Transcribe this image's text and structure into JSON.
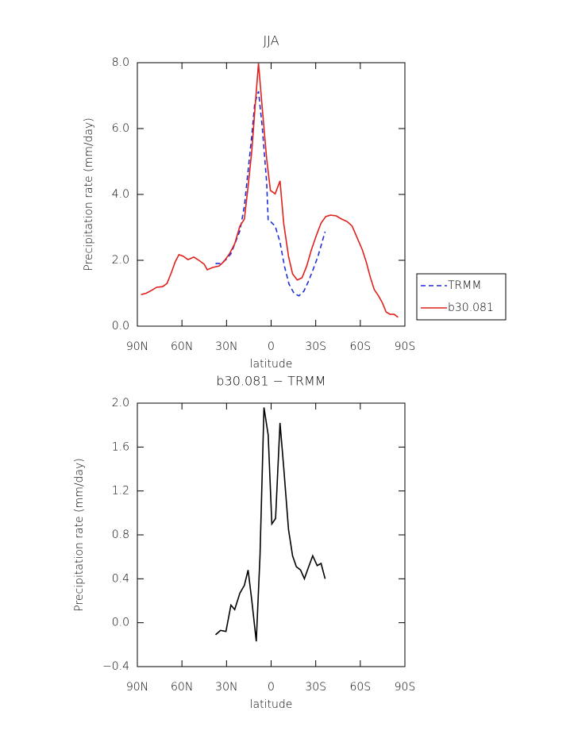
{
  "chart_data": [
    {
      "type": "line",
      "title": "JJA",
      "x_label": "latitude",
      "y_label": "Precipitation rate (mm/day)",
      "xlim": [
        90,
        -90
      ],
      "xticks": [
        {
          "value": 90,
          "label": "90N"
        },
        {
          "value": 60,
          "label": "60N"
        },
        {
          "value": 30,
          "label": "30N"
        },
        0,
        {
          "value": -30,
          "label": "30S"
        },
        {
          "value": -60,
          "label": "60S"
        },
        {
          "value": -90,
          "label": "90S"
        }
      ],
      "ylim": [
        0,
        8
      ],
      "yticks": [
        {
          "value": 0,
          "label": "0.0"
        },
        {
          "value": 2,
          "label": "2.0"
        },
        {
          "value": 4,
          "label": "4.0"
        },
        {
          "value": 6,
          "label": "6.0"
        },
        {
          "value": 8,
          "label": "8.0"
        }
      ],
      "legend": "right",
      "series": [
        {
          "name": "TRMM",
          "color": "#1f2fd6",
          "linestyle": "dashed",
          "x": [
            37.4,
            34,
            30.4,
            27,
            24,
            21,
            18,
            15.5,
            13,
            11,
            8.5,
            6,
            3,
            2,
            0,
            -2.7,
            -6,
            -9,
            -12,
            -15.5,
            -18.7,
            -22,
            -25,
            -28,
            -31.5,
            -34,
            -36.3
          ],
          "values": [
            1.9,
            1.9,
            2.02,
            2.2,
            2.55,
            2.9,
            3.64,
            4.72,
            5.8,
            6.77,
            7.13,
            6.05,
            4.36,
            3.2,
            3.16,
            3.04,
            2.55,
            1.81,
            1.28,
            0.99,
            0.92,
            1.06,
            1.35,
            1.69,
            2.12,
            2.51,
            2.87
          ]
        },
        {
          "name": "b30.081",
          "color": "#e0201b",
          "linestyle": "solid",
          "x": [
            87.5,
            84,
            80,
            77,
            73,
            70,
            67,
            64.6,
            62,
            59,
            56,
            52,
            48.6,
            45,
            43,
            39.5,
            35,
            32,
            28,
            24.5,
            21,
            18,
            15.5,
            13,
            11,
            8.5,
            6,
            3,
            0.5,
            -2.7,
            -6,
            -8.5,
            -11.7,
            -14.4,
            -17.6,
            -20.8,
            -24,
            -27,
            -30.4,
            -33.6,
            -36.8,
            -40,
            -43.8,
            -47.5,
            -51,
            -54.5,
            -58,
            -61.4,
            -64,
            -66.7,
            -69.4,
            -72,
            -74.7,
            -77.4,
            -80,
            -82.8,
            -85.4
          ],
          "values": [
            0.96,
            1.0,
            1.1,
            1.18,
            1.2,
            1.3,
            1.64,
            1.95,
            2.17,
            2.12,
            2.02,
            2.1,
            2.0,
            1.88,
            1.71,
            1.78,
            1.83,
            1.95,
            2.2,
            2.5,
            3.04,
            3.25,
            4.24,
            5.33,
            6.53,
            7.98,
            6.63,
            5.08,
            4.12,
            4.02,
            4.41,
            3.11,
            2.12,
            1.59,
            1.4,
            1.47,
            1.83,
            2.31,
            2.75,
            3.13,
            3.33,
            3.37,
            3.35,
            3.25,
            3.18,
            3.04,
            2.67,
            2.31,
            1.95,
            1.49,
            1.11,
            0.94,
            0.72,
            0.43,
            0.36,
            0.36,
            0.27
          ]
        }
      ]
    },
    {
      "type": "line",
      "title": "b30.081 − TRMM",
      "x_label": "latitude",
      "y_label": "Precipitation rate (mm/day)",
      "xlim": [
        90,
        -90
      ],
      "xticks": [
        {
          "value": 90,
          "label": "90N"
        },
        {
          "value": 60,
          "label": "60N"
        },
        {
          "value": 30,
          "label": "30N"
        },
        0,
        {
          "value": -30,
          "label": "30S"
        },
        {
          "value": -60,
          "label": "60S"
        },
        {
          "value": -90,
          "label": "90S"
        }
      ],
      "ylim": [
        -0.4,
        2.0
      ],
      "yticks": [
        {
          "value": -0.4,
          "label": "−0.4"
        },
        {
          "value": 0,
          "label": "0.0"
        },
        0.4,
        0.8,
        1.2,
        1.6,
        {
          "value": 2,
          "label": "2.0"
        }
      ],
      "color": "#000000",
      "x": [
        37.4,
        34,
        30.4,
        27,
        24.5,
        21,
        18,
        15.5,
        13,
        10,
        7.5,
        4.8,
        2,
        -0.5,
        -3,
        -6,
        -8.5,
        -11.7,
        -14.4,
        -17,
        -19.8,
        -22.4,
        -25,
        -28,
        -31,
        -33.6,
        -36.3
      ],
      "values": [
        -0.11,
        -0.07,
        -0.08,
        0.16,
        0.12,
        0.27,
        0.34,
        0.48,
        0.2,
        -0.17,
        0.61,
        1.96,
        1.71,
        0.9,
        0.95,
        1.82,
        1.41,
        0.85,
        0.61,
        0.51,
        0.48,
        0.4,
        0.5,
        0.61,
        0.52,
        0.54,
        0.4
      ]
    }
  ]
}
